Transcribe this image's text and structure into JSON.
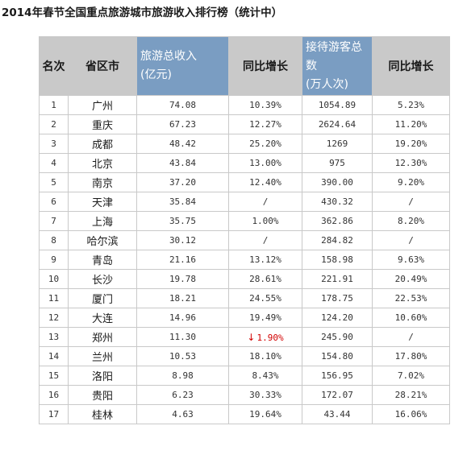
{
  "title": "2014年春节全国重点旅游城市旅游收入排行榜（统计中）",
  "headers": {
    "rank": "名次",
    "province": "省区市",
    "revenue_line1": "旅游总收入",
    "revenue_line2": "(亿元)",
    "revenue_growth": "同比增长",
    "visitors_line1": "接待游客总",
    "visitors_line2": "数",
    "visitors_line3": "(万人次)",
    "visitors_growth": "同比增长"
  },
  "rows": [
    {
      "rank": "1",
      "city": "广州",
      "revenue": "74.08",
      "revenue_growth": "10.39%",
      "visitors": "1054.89",
      "visitors_growth": "5.23%"
    },
    {
      "rank": "2",
      "city": "重庆",
      "revenue": "67.23",
      "revenue_growth": "12.27%",
      "visitors": "2624.64",
      "visitors_growth": "11.20%"
    },
    {
      "rank": "3",
      "city": "成都",
      "revenue": "48.42",
      "revenue_growth": "25.20%",
      "visitors": "1269",
      "visitors_growth": "19.20%"
    },
    {
      "rank": "4",
      "city": "北京",
      "revenue": "43.84",
      "revenue_growth": "13.00%",
      "visitors": "975",
      "visitors_growth": "12.30%"
    },
    {
      "rank": "5",
      "city": "南京",
      "revenue": "37.20",
      "revenue_growth": "12.40%",
      "visitors": "390.00",
      "visitors_growth": "9.20%"
    },
    {
      "rank": "6",
      "city": "天津",
      "revenue": "35.84",
      "revenue_growth": "/",
      "visitors": "430.32",
      "visitors_growth": "/"
    },
    {
      "rank": "7",
      "city": "上海",
      "revenue": "35.75",
      "revenue_growth": "1.00%",
      "visitors": "362.86",
      "visitors_growth": "8.20%"
    },
    {
      "rank": "8",
      "city": "哈尔滨",
      "revenue": "30.12",
      "revenue_growth": "/",
      "visitors": "284.82",
      "visitors_growth": "/"
    },
    {
      "rank": "9",
      "city": "青岛",
      "revenue": "21.16",
      "revenue_growth": "13.12%",
      "visitors": "158.98",
      "visitors_growth": "9.63%"
    },
    {
      "rank": "10",
      "city": "长沙",
      "revenue": "19.78",
      "revenue_growth": "28.61%",
      "visitors": "221.91",
      "visitors_growth": "20.49%"
    },
    {
      "rank": "11",
      "city": "厦门",
      "revenue": "18.21",
      "revenue_growth": "24.55%",
      "visitors": "178.75",
      "visitors_growth": "22.53%"
    },
    {
      "rank": "12",
      "city": "大连",
      "revenue": "14.96",
      "revenue_growth": "19.49%",
      "visitors": "124.20",
      "visitors_growth": "10.60%"
    },
    {
      "rank": "13",
      "city": "郑州",
      "revenue": "11.30",
      "revenue_growth": "1.90%",
      "revenue_growth_down": true,
      "visitors": "245.90",
      "visitors_growth": "/"
    },
    {
      "rank": "14",
      "city": "兰州",
      "revenue": "10.53",
      "revenue_growth": "18.10%",
      "visitors": "154.80",
      "visitors_growth": "17.80%"
    },
    {
      "rank": "15",
      "city": "洛阳",
      "revenue": "8.98",
      "revenue_growth": "8.43%",
      "visitors": "156.95",
      "visitors_growth": "7.02%"
    },
    {
      "rank": "16",
      "city": "贵阳",
      "revenue": "6.23",
      "revenue_growth": "30.33%",
      "visitors": "172.07",
      "visitors_growth": "28.21%"
    },
    {
      "rank": "17",
      "city": "桂林",
      "revenue": "4.63",
      "revenue_growth": "19.64%",
      "visitors": "43.44",
      "visitors_growth": "16.06%"
    }
  ],
  "colors": {
    "header_gray": "#c9c9c9",
    "header_blue": "#7a9dc2",
    "decline_red": "#d20000"
  }
}
